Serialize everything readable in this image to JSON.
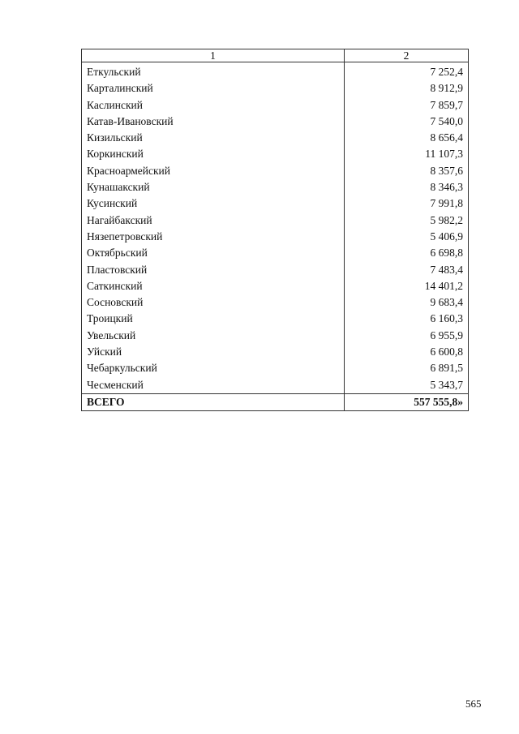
{
  "table": {
    "headers": [
      "1",
      "2"
    ],
    "rows": [
      {
        "name": "Еткульский",
        "value": "7 252,4"
      },
      {
        "name": "Карталинский",
        "value": "8 912,9"
      },
      {
        "name": "Каслинский",
        "value": "7 859,7"
      },
      {
        "name": "Катав-Ивановский",
        "value": "7 540,0"
      },
      {
        "name": "Кизильский",
        "value": "8 656,4"
      },
      {
        "name": "Коркинский",
        "value": "11 107,3"
      },
      {
        "name": "Красноармейский",
        "value": "8 357,6"
      },
      {
        "name": "Кунашакский",
        "value": "8 346,3"
      },
      {
        "name": "Кусинский",
        "value": "7 991,8"
      },
      {
        "name": "Нагайбакский",
        "value": "5 982,2"
      },
      {
        "name": "Нязепетровский",
        "value": "5 406,9"
      },
      {
        "name": "Октябрьский",
        "value": "6 698,8"
      },
      {
        "name": "Пластовский",
        "value": "7 483,4"
      },
      {
        "name": "Саткинский",
        "value": "14 401,2"
      },
      {
        "name": "Сосновский",
        "value": "9 683,4"
      },
      {
        "name": "Троицкий",
        "value": "6 160,3"
      },
      {
        "name": "Увельский",
        "value": "6 955,9"
      },
      {
        "name": "Уйский",
        "value": "6 600,8"
      },
      {
        "name": "Чебаркульский",
        "value": "6 891,5"
      },
      {
        "name": "Чесменский",
        "value": "5 343,7"
      }
    ],
    "total": {
      "name": "ВСЕГО",
      "value": "557 555,8»"
    }
  },
  "page_number": "565"
}
